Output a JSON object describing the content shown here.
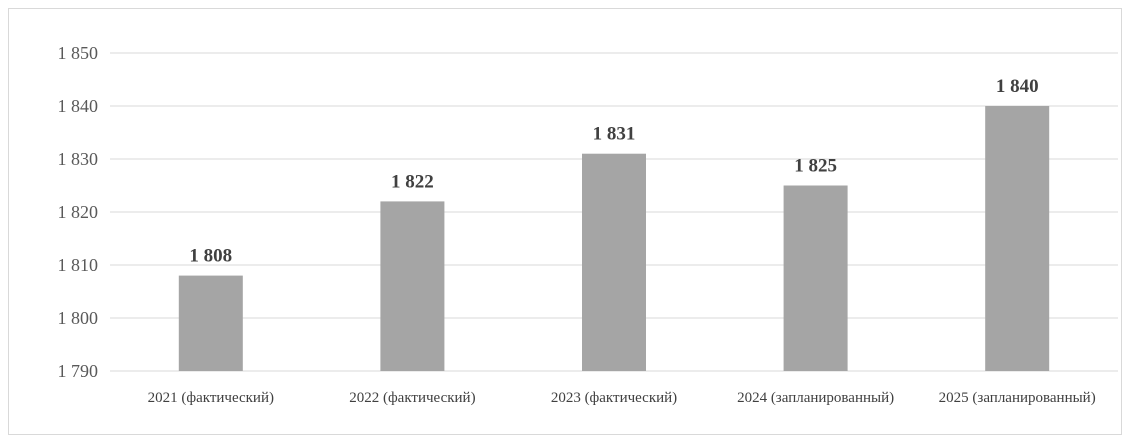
{
  "chart_data": {
    "type": "bar",
    "title": "",
    "xlabel": "",
    "ylabel": "",
    "categories": [
      "2021 (фактический)",
      "2022 (фактический)",
      "2023 (фактический)",
      "2024 (запланированный)",
      "2025 (запланированный)"
    ],
    "values": [
      1808,
      1822,
      1831,
      1825,
      1840
    ],
    "data_labels": [
      "1 808",
      "1 822",
      "1 831",
      "1 825",
      "1 840"
    ],
    "ylim": [
      1790,
      1850
    ],
    "yticks": [
      1790,
      1800,
      1810,
      1820,
      1830,
      1840,
      1850
    ],
    "ytick_labels": [
      "1 790",
      "1 800",
      "1 810",
      "1 820",
      "1 830",
      "1 840",
      "1 850"
    ],
    "grid": true,
    "legend": "none",
    "colors": {
      "bar": "#a5a5a5",
      "grid": "#d9d9d9",
      "axis": "#d9d9d9"
    }
  }
}
